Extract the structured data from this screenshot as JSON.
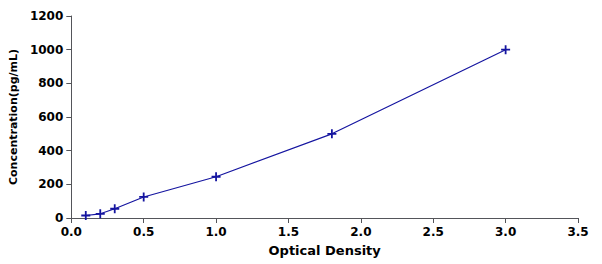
{
  "chart_data": {
    "type": "line",
    "xlabel": "Optical Density",
    "ylabel": "Concentration(pg/mL)",
    "x": [
      0.1,
      0.2,
      0.3,
      0.5,
      1.0,
      1.8,
      3.0
    ],
    "values": [
      15,
      25,
      55,
      125,
      245,
      500,
      1000
    ],
    "color": "#1515a0",
    "marker": "plus",
    "xlim": [
      0,
      3.5
    ],
    "ylim": [
      0,
      1200
    ],
    "xticks": [
      {
        "value": 0,
        "label": "0.0"
      },
      0.5,
      {
        "value": 1,
        "label": "1.0"
      },
      1.5,
      {
        "value": 2,
        "label": "2.0"
      },
      2.5,
      {
        "value": 3,
        "label": "3.0"
      },
      3.5
    ],
    "yticks": [
      0,
      200,
      400,
      600,
      800,
      1000,
      1200
    ],
    "grid": false
  }
}
